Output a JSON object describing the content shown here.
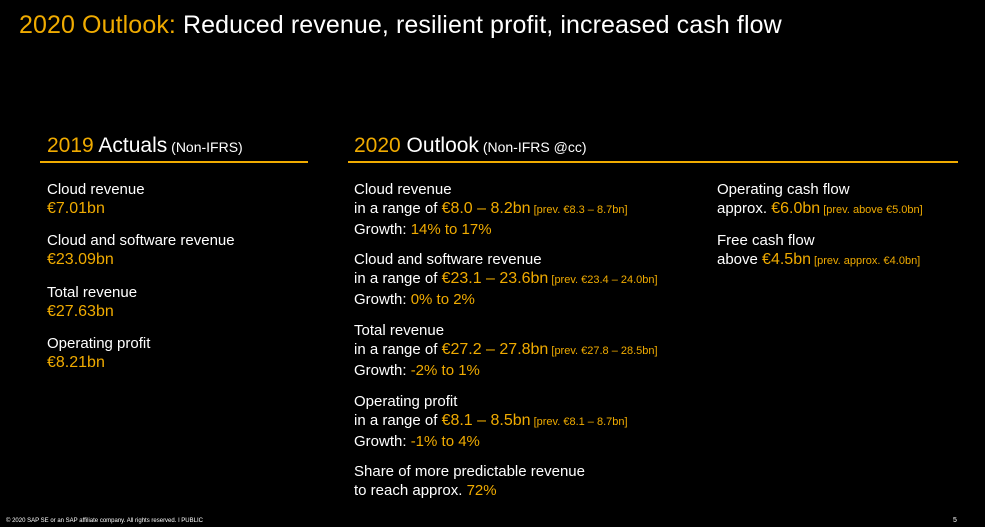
{
  "title": {
    "highlight": "2020 Outlook:",
    "text": " Reduced revenue, resilient profit, increased cash flow"
  },
  "actuals": {
    "heading": {
      "year": "2019",
      "label": " Actuals",
      "note": " (Non-IFRS)"
    },
    "items": [
      {
        "label": "Cloud revenue",
        "value": "€7.01bn"
      },
      {
        "label": "Cloud and software revenue",
        "value": "€23.09bn"
      },
      {
        "label": "Total revenue",
        "value": "€27.63bn"
      },
      {
        "label": "Operating profit",
        "value": "€8.21bn"
      }
    ]
  },
  "outlook": {
    "heading": {
      "year": "2020",
      "label": " Outlook",
      "note": " (Non-IFRS @cc)"
    },
    "items": [
      {
        "label": "Cloud revenue",
        "prefix": "in a range of ",
        "range": "€8.0 – 8.2bn",
        "prev": " [prev. €8.3 – 8.7bn]",
        "growth_label": "Growth: ",
        "growth": "14% to 17%"
      },
      {
        "label": "Cloud and software revenue",
        "prefix": "in a range of ",
        "range": "€23.1 – 23.6bn",
        "prev": " [prev. €23.4 – 24.0bn]",
        "growth_label": "Growth: ",
        "growth": "0% to 2%"
      },
      {
        "label": "Total revenue",
        "prefix": "in a range of ",
        "range": "€27.2 – 27.8bn",
        "prev": " [prev.  €27.8 – 28.5bn]",
        "growth_label": "Growth: ",
        "growth": "-2% to 1%"
      },
      {
        "label": "Operating profit",
        "prefix": "in a range of ",
        "range": "€8.1 – 8.5bn",
        "prev": " [prev. €8.1 – 8.7bn]",
        "growth_label": "Growth: ",
        "growth": "-1% to 4%"
      }
    ],
    "share": {
      "line1": "Share of more predictable revenue",
      "line2_prefix": "to reach approx. ",
      "value": "72%"
    }
  },
  "cash": {
    "items": [
      {
        "label": "Operating cash flow",
        "prefix": "approx. ",
        "value": "€6.0bn",
        "note": " [prev. above €5.0bn]"
      },
      {
        "label": "Free cash flow",
        "prefix": "above ",
        "value": "€4.5bn",
        "note": " [prev. approx. €4.0bn]"
      }
    ]
  },
  "footer": {
    "text": "© 2020 SAP SE or an SAP affiliate company. All rights reserved.  ǀ    PUBLIC",
    "page": "5"
  }
}
